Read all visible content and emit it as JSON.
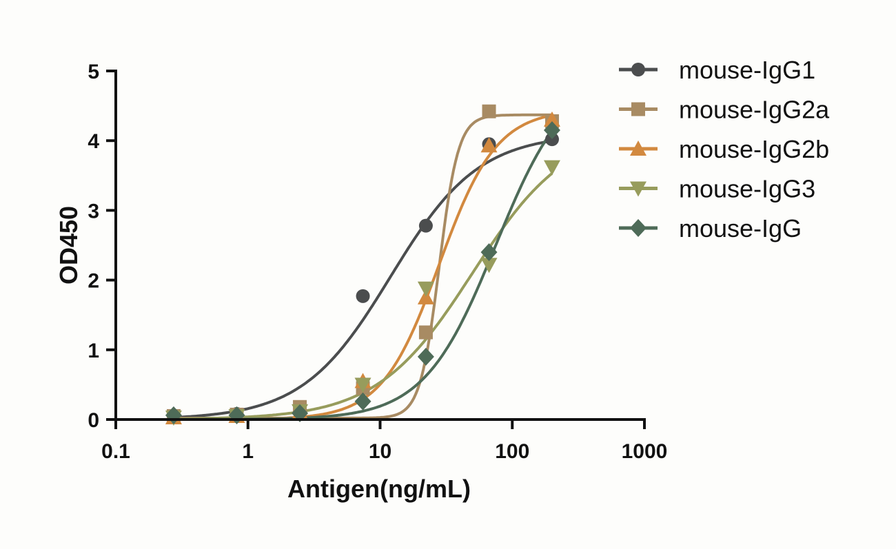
{
  "chart_data": {
    "type": "scatter",
    "title": "",
    "xlabel": "Antigen(ng/mL)",
    "ylabel": "OD450",
    "xscale": "log",
    "xlim": [
      0.1,
      1000
    ],
    "ylim": [
      0,
      5
    ],
    "xticks": [
      "0.1",
      "1",
      "10",
      "100",
      "1000"
    ],
    "yticks": [
      "0",
      "1",
      "2",
      "3",
      "4",
      "5"
    ],
    "grid": false,
    "legend_position": "right",
    "x": [
      0.274,
      0.823,
      2.47,
      7.41,
      22.2,
      66.7,
      200
    ],
    "series": [
      {
        "name": "mouse-IgG1",
        "color": "#4b4d4e",
        "marker": "circle",
        "values": [
          0.05,
          0.08,
          0.1,
          1.77,
          2.78,
          3.95,
          4.02
        ]
      },
      {
        "name": "mouse-IgG2a",
        "color": "#a88b63",
        "marker": "square",
        "values": [
          0.05,
          0.07,
          0.18,
          0.45,
          1.25,
          4.42,
          4.28
        ]
      },
      {
        "name": "mouse-IgG2b",
        "color": "#d2893f",
        "marker": "triangle-up",
        "values": [
          0.03,
          0.05,
          0.1,
          0.55,
          1.75,
          3.93,
          4.3
        ]
      },
      {
        "name": "mouse-IgG3",
        "color": "#979c5c",
        "marker": "triangle-down",
        "values": [
          0.03,
          0.05,
          0.12,
          0.5,
          1.88,
          2.22,
          3.62
        ]
      },
      {
        "name": "mouse-IgG",
        "color": "#4e6b58",
        "marker": "diamond",
        "values": [
          0.06,
          0.06,
          0.09,
          0.26,
          0.9,
          2.4,
          4.15
        ]
      }
    ]
  }
}
